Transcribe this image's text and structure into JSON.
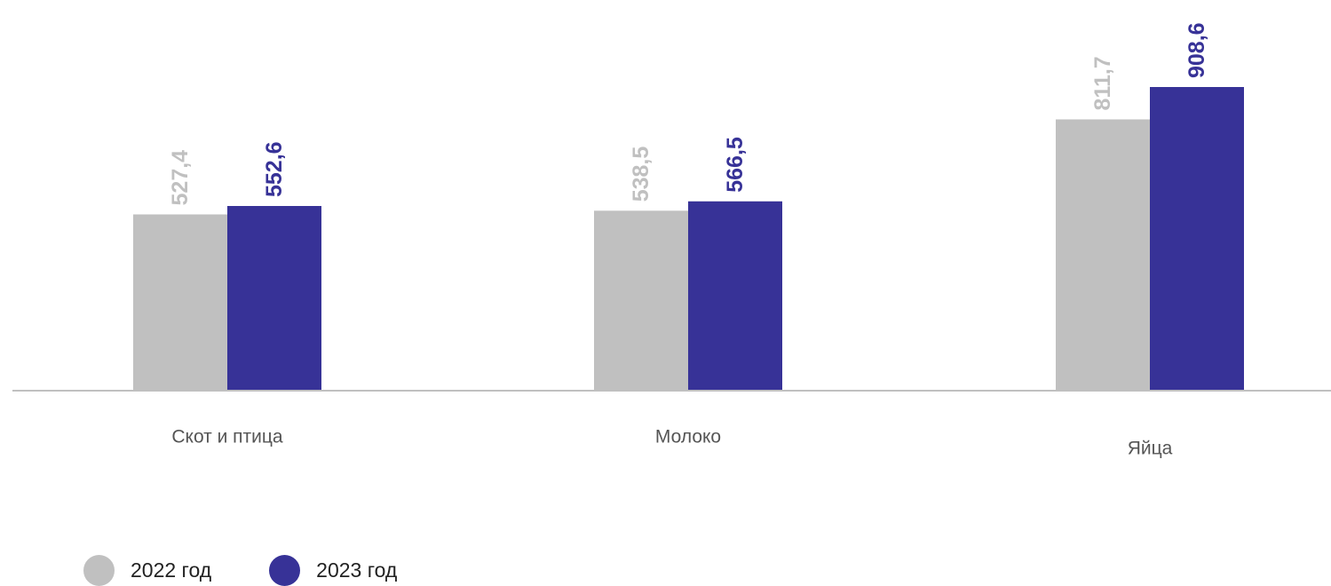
{
  "chart_data": {
    "type": "bar",
    "title": "",
    "xlabel": "",
    "ylabel": "",
    "categories": [
      "Скот и птица",
      "Молоко",
      "Яйца"
    ],
    "series": [
      {
        "name": "2022 год",
        "color": "#c0c0c0",
        "label_color": "#c0c0c0",
        "values": [
          527.4,
          538.5,
          811.7
        ],
        "value_labels": [
          "527,4",
          "538,5",
          "811,7"
        ]
      },
      {
        "name": "2023 год",
        "color": "#373297",
        "label_color": "#373297",
        "values": [
          552.6,
          566.5,
          908.6
        ],
        "value_labels": [
          "552,6",
          "566,5",
          "908,6"
        ]
      }
    ],
    "ylim": [
      0,
      908.6
    ],
    "grid": false,
    "value_labels_rotated": true,
    "legend_position": "bottom-left"
  },
  "legend": [
    {
      "label": "2022 год",
      "color": "#c0c0c0"
    },
    {
      "label": "2023 год",
      "color": "#373297"
    }
  ],
  "colors": {
    "axis": "#c0c0c0",
    "category_text": "#555555"
  }
}
